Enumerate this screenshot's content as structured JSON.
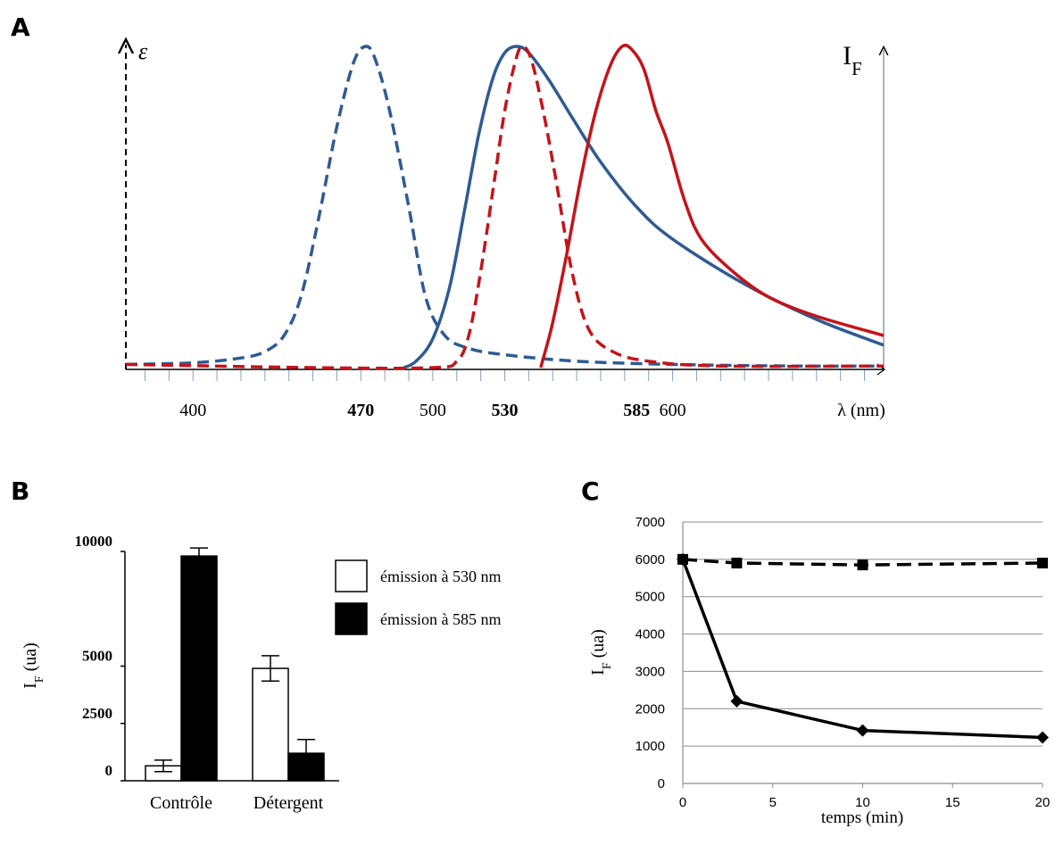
{
  "figure": {
    "panel_letters": [
      "A",
      "B",
      "C"
    ]
  },
  "chart_data": [
    {
      "panel": "A",
      "type": "line",
      "title": "",
      "y_left_label": "ε",
      "y_right_label": "I",
      "y_right_label_sub": "F",
      "x_label": "λ (nm)",
      "x_ticks_plain": [
        400,
        500,
        600
      ],
      "x_ticks_bold": [
        470,
        530,
        585
      ],
      "xlim": [
        372,
        688
      ],
      "ylim": [
        0,
        1
      ],
      "colors": {
        "blue": "#2f5b93",
        "red": "#c4141a"
      },
      "series": [
        {
          "color": "blue",
          "dash": true,
          "x": [
            372,
            400,
            420,
            430,
            438,
            445,
            452,
            460,
            467,
            472,
            476,
            482,
            490,
            497,
            505,
            515,
            530,
            560,
            600,
            650,
            688
          ],
          "y": [
            0.01,
            0.015,
            0.03,
            0.05,
            0.1,
            0.22,
            0.45,
            0.75,
            0.95,
            1.0,
            0.96,
            0.8,
            0.5,
            0.22,
            0.1,
            0.06,
            0.04,
            0.02,
            0.01,
            0.005,
            0.005
          ]
        },
        {
          "color": "blue",
          "dash": false,
          "x": [
            488,
            493,
            500,
            507,
            513,
            519,
            525,
            530,
            535,
            540,
            548,
            558,
            570,
            585,
            600,
            630,
            660,
            688
          ],
          "y": [
            0.0,
            0.02,
            0.09,
            0.25,
            0.48,
            0.72,
            0.9,
            0.98,
            1.0,
            0.98,
            0.9,
            0.78,
            0.64,
            0.5,
            0.4,
            0.26,
            0.15,
            0.07
          ]
        },
        {
          "color": "red",
          "dash": true,
          "x": [
            372,
            450,
            500,
            510,
            515,
            520,
            526,
            530,
            534,
            537,
            541,
            546,
            551,
            558,
            565,
            575,
            590,
            620,
            688
          ],
          "y": [
            0.01,
            0.0,
            0.0,
            0.02,
            0.1,
            0.3,
            0.6,
            0.8,
            0.94,
            1.0,
            0.96,
            0.8,
            0.6,
            0.3,
            0.12,
            0.05,
            0.02,
            0.005,
            0.005
          ]
        },
        {
          "color": "red",
          "dash": false,
          "x": [
            545,
            550,
            556,
            562,
            568,
            574,
            579,
            583,
            588,
            593,
            598,
            605,
            612,
            625,
            640,
            660,
            688
          ],
          "y": [
            0.0,
            0.14,
            0.36,
            0.6,
            0.8,
            0.94,
            1.0,
            0.99,
            0.93,
            0.8,
            0.7,
            0.52,
            0.4,
            0.3,
            0.22,
            0.16,
            0.1
          ]
        }
      ]
    },
    {
      "panel": "B",
      "type": "bar",
      "title": "",
      "ylabel": "I",
      "ylabel_sub": "F",
      "ylabel_suffix": " (ua)",
      "categories": [
        "Contrôle",
        "Détergent"
      ],
      "yticks": [
        "0",
        "2500",
        "5000",
        "10000"
      ],
      "ylim": [
        0,
        10000
      ],
      "series": [
        {
          "name": "émission à 530 nm",
          "fill": "#ffffff",
          "values": [
            650,
            4900
          ],
          "errors": [
            250,
            550
          ]
        },
        {
          "name": "émission à 585 nm",
          "fill": "#000000",
          "values": [
            9800,
            1200
          ],
          "errors": [
            350,
            600
          ]
        }
      ]
    },
    {
      "panel": "C",
      "type": "line",
      "title": "",
      "ylabel": "I",
      "ylabel_sub": "F",
      "ylabel_suffix": " (ua)",
      "xlabel": "temps (min)",
      "xticks": [
        0,
        5,
        10,
        15,
        20
      ],
      "yticks": [
        0,
        1000,
        2000,
        3000,
        4000,
        5000,
        6000,
        7000
      ],
      "xlim": [
        0,
        20
      ],
      "ylim": [
        0,
        7000
      ],
      "grid": "horizontal",
      "series": [
        {
          "marker": "square",
          "dash": true,
          "x": [
            0,
            3,
            10,
            20
          ],
          "y": [
            6000,
            5900,
            5850,
            5900
          ]
        },
        {
          "marker": "diamond",
          "dash": false,
          "x": [
            0,
            3,
            10,
            20
          ],
          "y": [
            6000,
            2200,
            1420,
            1230
          ]
        }
      ]
    }
  ]
}
